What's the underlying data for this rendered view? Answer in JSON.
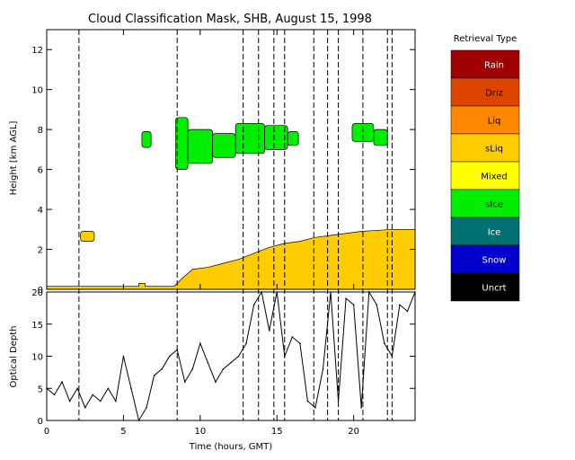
{
  "chart_data": [
    {
      "type": "heatmap",
      "title": "Cloud Classification Mask, SHB, August 15, 1998",
      "ylabel": "Height [km AGL]",
      "xlim": [
        0,
        24
      ],
      "ylim": [
        0,
        13
      ],
      "yticks": [
        0,
        2,
        4,
        6,
        8,
        10,
        12
      ],
      "legend": {
        "title": "Retrieval Type",
        "placement": "right",
        "items": [
          {
            "label": "Rain",
            "color": "#a00000"
          },
          {
            "label": "Driz",
            "color": "#dd4400"
          },
          {
            "label": "Liq",
            "color": "#ff8800"
          },
          {
            "label": "sLiq",
            "color": "#ffcc00"
          },
          {
            "label": "Mixed",
            "color": "#ffff00"
          },
          {
            "label": "sIce",
            "color": "#00ee00"
          },
          {
            "label": "Ice",
            "color": "#007070"
          },
          {
            "label": "Snow",
            "color": "#0000cc"
          },
          {
            "label": "Uncrt",
            "color": "#000000"
          }
        ]
      },
      "regions": [
        {
          "class": "Mixed",
          "top": [
            [
              0,
              0
            ],
            [
              8.3,
              0
            ],
            [
              8.8,
              0.4
            ],
            [
              9.5,
              0.8
            ],
            [
              10.5,
              0.9
            ],
            [
              11.5,
              1.0
            ],
            [
              12.5,
              1.1
            ],
            [
              13.5,
              1.4
            ],
            [
              14.5,
              1.7
            ],
            [
              15.5,
              2.0
            ],
            [
              16.5,
              2.2
            ],
            [
              17.5,
              2.4
            ],
            [
              18.5,
              2.5
            ],
            [
              19.5,
              2.6
            ],
            [
              20.5,
              2.7
            ],
            [
              21.5,
              2.8
            ],
            [
              22.5,
              2.9
            ],
            [
              24,
              2.9
            ]
          ]
        },
        {
          "class": "sLiq",
          "top": [
            [
              0,
              0.15
            ],
            [
              6.0,
              0.15
            ],
            [
              6.0,
              0.3
            ],
            [
              6.4,
              0.3
            ],
            [
              6.4,
              0.15
            ],
            [
              8.3,
              0.15
            ],
            [
              8.9,
              0.6
            ],
            [
              9.5,
              1.0
            ],
            [
              10.5,
              1.1
            ],
            [
              11.5,
              1.3
            ],
            [
              12.5,
              1.5
            ],
            [
              13.5,
              1.8
            ],
            [
              14.5,
              2.1
            ],
            [
              15.5,
              2.3
            ],
            [
              16.5,
              2.4
            ],
            [
              17.5,
              2.6
            ],
            [
              18.5,
              2.7
            ],
            [
              19.5,
              2.8
            ],
            [
              20.5,
              2.9
            ],
            [
              21.5,
              2.95
            ],
            [
              22.5,
              3.0
            ],
            [
              24,
              3.0
            ]
          ]
        },
        {
          "class": "sIce",
          "cells": [
            {
              "x": [
                6.2,
                6.8
              ],
              "y": [
                7.1,
                7.9
              ]
            },
            {
              "x": [
                8.4,
                9.2
              ],
              "y": [
                6.0,
                8.6
              ]
            },
            {
              "x": [
                9.2,
                10.8
              ],
              "y": [
                6.3,
                8.0
              ]
            },
            {
              "x": [
                10.8,
                12.3
              ],
              "y": [
                6.6,
                7.8
              ]
            },
            {
              "x": [
                12.3,
                14.2
              ],
              "y": [
                6.8,
                8.3
              ]
            },
            {
              "x": [
                14.2,
                15.7
              ],
              "y": [
                7.0,
                8.2
              ]
            },
            {
              "x": [
                15.7,
                16.4
              ],
              "y": [
                7.2,
                7.9
              ]
            },
            {
              "x": [
                19.9,
                21.3
              ],
              "y": [
                7.4,
                8.3
              ]
            },
            {
              "x": [
                21.3,
                22.2
              ],
              "y": [
                7.2,
                8.0
              ]
            }
          ]
        },
        {
          "class": "sLiq",
          "cells": [
            {
              "x": [
                2.2,
                3.1
              ],
              "y": [
                2.4,
                2.9
              ]
            }
          ]
        }
      ],
      "vertical_lines": [
        2.1,
        8.5,
        12.8,
        13.8,
        14.8,
        15.5,
        17.4,
        18.3,
        19.0,
        20.6,
        22.2,
        22.5
      ]
    },
    {
      "type": "line",
      "xlabel": "Time (hours, GMT)",
      "ylabel": "Optical Depth",
      "xlim": [
        0,
        24
      ],
      "ylim": [
        0,
        20
      ],
      "xticks": [
        0,
        5,
        10,
        15,
        20
      ],
      "yticks": [
        0,
        5,
        10,
        15,
        20
      ],
      "series": [
        {
          "x": [
            0,
            0.5,
            1,
            1.5,
            2,
            2.5,
            3,
            3.5,
            4,
            4.5,
            5,
            5.5,
            6,
            6.5,
            7,
            7.5,
            8,
            8.5,
            9,
            9.5,
            10,
            10.5,
            11,
            11.5,
            12,
            12.5,
            13,
            13.5,
            14,
            14.5,
            15,
            15.5,
            16,
            16.5,
            17,
            17.5,
            18,
            18.5,
            19,
            19.5,
            20,
            20.5,
            21,
            21.5,
            22,
            22.5,
            23,
            23.5,
            24
          ],
          "y": [
            5,
            4,
            6,
            3,
            5,
            2,
            4,
            3,
            5,
            3,
            10,
            5,
            0,
            2,
            7,
            8,
            10,
            11,
            6,
            8,
            12,
            9,
            6,
            8,
            9,
            10,
            12,
            18,
            20,
            14,
            20,
            10,
            13,
            12,
            3,
            2,
            8,
            20,
            3,
            19,
            18,
            2,
            20,
            18,
            12,
            10,
            18,
            17,
            20
          ]
        }
      ]
    }
  ]
}
